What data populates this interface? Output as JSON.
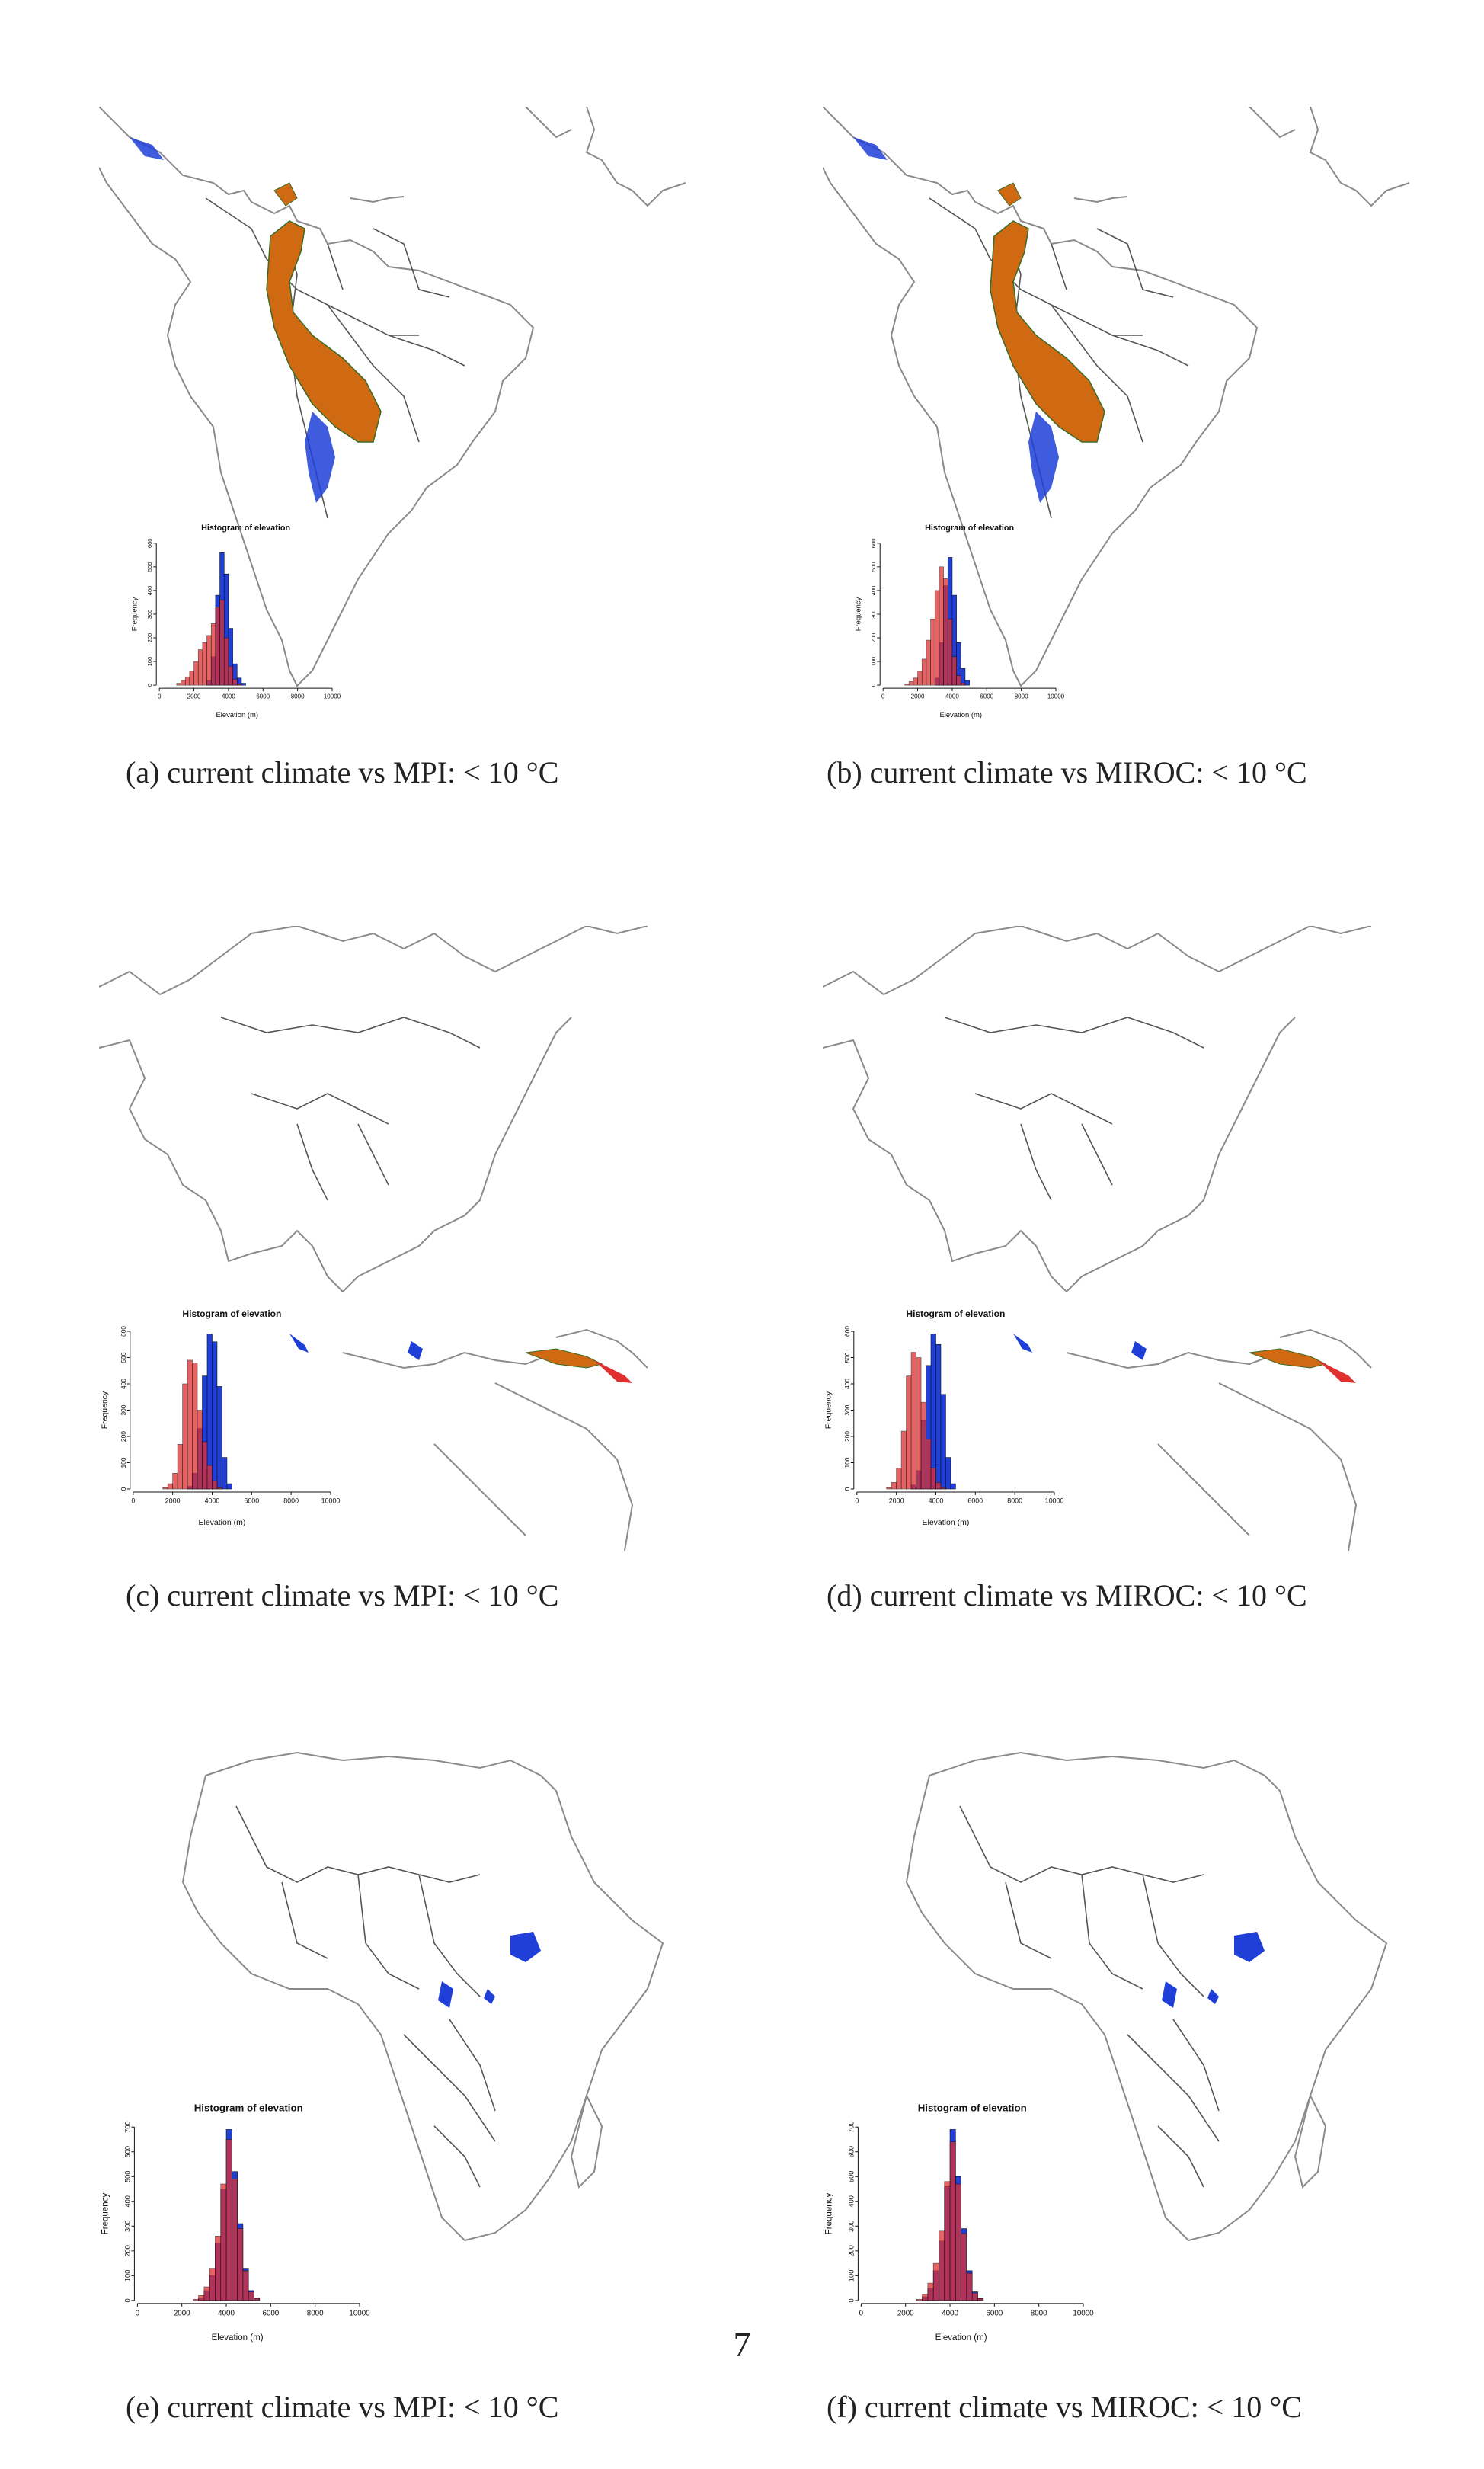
{
  "page_number": "7",
  "colors": {
    "future": "#1f3fd8",
    "current": "#e03030",
    "overlap": "#3a1448",
    "range_fill": "#d06a12",
    "range_edge": "#3a6a2a",
    "coast": "#8a8a8a",
    "border": "#555555"
  },
  "panels": [
    {
      "caption": "(a) current climate vs MPI: < 10 °C",
      "hist_title": "Histogram of elevation",
      "xlabel": "Elevation (m)",
      "ylabel": "Frequency",
      "region": "south-america",
      "xticks": [
        "0",
        "2000",
        "4000",
        "6000",
        "8000",
        "10000"
      ],
      "yticks": [
        "0",
        "100",
        "200",
        "300",
        "400",
        "500",
        "600"
      ]
    },
    {
      "caption": "(b) current climate vs MIROC: < 10 °C",
      "hist_title": "Histogram of elevation",
      "xlabel": "Elevation (m)",
      "ylabel": "Frequency",
      "region": "south-america",
      "xticks": [
        "0",
        "2000",
        "4000",
        "6000",
        "8000",
        "10000"
      ],
      "yticks": [
        "0",
        "100",
        "200",
        "300",
        "400",
        "500",
        "600"
      ]
    },
    {
      "caption": "(c) current climate vs MPI: < 10 °C",
      "hist_title": "Histogram of elevation",
      "xlabel": "Elevation (m)",
      "ylabel": "Frequency",
      "region": "asia-pacific",
      "xticks": [
        "0",
        "2000",
        "4000",
        "6000",
        "8000",
        "10000"
      ],
      "yticks": [
        "0",
        "100",
        "200",
        "300",
        "400",
        "500",
        "600"
      ]
    },
    {
      "caption": "(d) current climate vs MIROC: < 10 °C",
      "hist_title": "Histogram of elevation",
      "xlabel": "Elevation (m)",
      "ylabel": "Frequency",
      "region": "asia-pacific",
      "xticks": [
        "0",
        "2000",
        "4000",
        "6000",
        "8000",
        "10000"
      ],
      "yticks": [
        "0",
        "100",
        "200",
        "300",
        "400",
        "500",
        "600"
      ]
    },
    {
      "caption": "(e) current climate vs MPI: < 10 °C",
      "hist_title": "Histogram of elevation",
      "xlabel": "Elevation (m)",
      "ylabel": "Frequency",
      "region": "africa",
      "xticks": [
        "0",
        "2000",
        "4000",
        "6000",
        "8000",
        "10000"
      ],
      "yticks": [
        "0",
        "100",
        "200",
        "300",
        "400",
        "500",
        "600",
        "700"
      ]
    },
    {
      "caption": "(f) current climate vs MIROC: < 10 °C",
      "hist_title": "Histogram of elevation",
      "xlabel": "Elevation (m)",
      "ylabel": "Frequency",
      "region": "africa",
      "xticks": [
        "0",
        "2000",
        "4000",
        "6000",
        "8000",
        "10000"
      ],
      "yticks": [
        "0",
        "100",
        "200",
        "300",
        "400",
        "500",
        "600",
        "700"
      ]
    }
  ],
  "chart_data": [
    {
      "type": "bar",
      "title": "Histogram of elevation",
      "xlabel": "Elevation (m)",
      "ylabel": "Frequency",
      "xlim": [
        0,
        10000
      ],
      "ylim": [
        0,
        600
      ],
      "bin_starts": [
        1000,
        1250,
        1500,
        1750,
        2000,
        2250,
        2500,
        2750,
        3000,
        3250,
        3500,
        3750,
        4000,
        4250,
        4500,
        4750,
        5000
      ],
      "series": [
        {
          "values": [
            0,
            0,
            0,
            0,
            0,
            0,
            0,
            20,
            120,
            380,
            560,
            470,
            240,
            90,
            30,
            8,
            0
          ]
        },
        {
          "values": [
            8,
            20,
            35,
            60,
            100,
            150,
            180,
            210,
            260,
            330,
            360,
            200,
            80,
            25,
            5,
            0,
            0
          ]
        }
      ]
    },
    {
      "type": "bar",
      "title": "Histogram of elevation",
      "xlabel": "Elevation (m)",
      "ylabel": "Frequency",
      "xlim": [
        0,
        10000
      ],
      "ylim": [
        0,
        600
      ],
      "bin_starts": [
        1000,
        1250,
        1500,
        1750,
        2000,
        2250,
        2500,
        2750,
        3000,
        3250,
        3500,
        3750,
        4000,
        4250,
        4500,
        4750,
        5000
      ],
      "series": [
        {
          "values": [
            0,
            0,
            0,
            0,
            0,
            0,
            0,
            0,
            30,
            180,
            420,
            540,
            380,
            180,
            70,
            20,
            0
          ]
        },
        {
          "values": [
            0,
            5,
            15,
            30,
            60,
            110,
            190,
            280,
            400,
            500,
            450,
            280,
            120,
            40,
            10,
            0,
            0
          ]
        }
      ]
    },
    {
      "type": "bar",
      "title": "Histogram of elevation",
      "xlabel": "Elevation (m)",
      "ylabel": "Frequency",
      "xlim": [
        0,
        10000
      ],
      "ylim": [
        0,
        600
      ],
      "bin_starts": [
        1500,
        1750,
        2000,
        2250,
        2500,
        2750,
        3000,
        3250,
        3500,
        3750,
        4000,
        4250,
        4500,
        4750
      ],
      "series": [
        {
          "values": [
            0,
            0,
            0,
            0,
            0,
            10,
            60,
            230,
            430,
            590,
            560,
            390,
            120,
            20
          ]
        },
        {
          "values": [
            5,
            20,
            60,
            170,
            400,
            490,
            480,
            300,
            180,
            90,
            30,
            5,
            0,
            0
          ]
        }
      ]
    },
    {
      "type": "bar",
      "title": "Histogram of elevation",
      "xlabel": "Elevation (m)",
      "ylabel": "Frequency",
      "xlim": [
        0,
        10000
      ],
      "ylim": [
        0,
        600
      ],
      "bin_starts": [
        1500,
        1750,
        2000,
        2250,
        2500,
        2750,
        3000,
        3250,
        3500,
        3750,
        4000,
        4250,
        4500,
        4750
      ],
      "series": [
        {
          "values": [
            0,
            0,
            0,
            0,
            0,
            15,
            70,
            260,
            470,
            590,
            550,
            360,
            120,
            20
          ]
        },
        {
          "values": [
            5,
            25,
            80,
            220,
            430,
            520,
            500,
            330,
            190,
            80,
            25,
            5,
            0,
            0
          ]
        }
      ]
    },
    {
      "type": "bar",
      "title": "Histogram of elevation",
      "xlabel": "Elevation (m)",
      "ylabel": "Frequency",
      "xlim": [
        0,
        10000
      ],
      "ylim": [
        0,
        700
      ],
      "bin_starts": [
        2500,
        2750,
        3000,
        3250,
        3500,
        3750,
        4000,
        4250,
        4500,
        4750,
        5000,
        5250
      ],
      "series": [
        {
          "values": [
            0,
            10,
            40,
            100,
            230,
            450,
            690,
            520,
            310,
            130,
            40,
            10
          ]
        },
        {
          "values": [
            5,
            20,
            55,
            130,
            260,
            470,
            650,
            490,
            290,
            120,
            35,
            8
          ]
        }
      ]
    },
    {
      "type": "bar",
      "title": "Histogram of elevation",
      "xlabel": "Elevation (m)",
      "ylabel": "Frequency",
      "xlim": [
        0,
        10000
      ],
      "ylim": [
        0,
        700
      ],
      "bin_starts": [
        2500,
        2750,
        3000,
        3250,
        3500,
        3750,
        4000,
        4250,
        4500,
        4750,
        5000,
        5250
      ],
      "series": [
        {
          "values": [
            0,
            15,
            50,
            120,
            240,
            460,
            690,
            500,
            290,
            120,
            35,
            8
          ]
        },
        {
          "values": [
            5,
            25,
            70,
            150,
            280,
            480,
            640,
            470,
            270,
            110,
            30,
            8
          ]
        }
      ]
    }
  ]
}
